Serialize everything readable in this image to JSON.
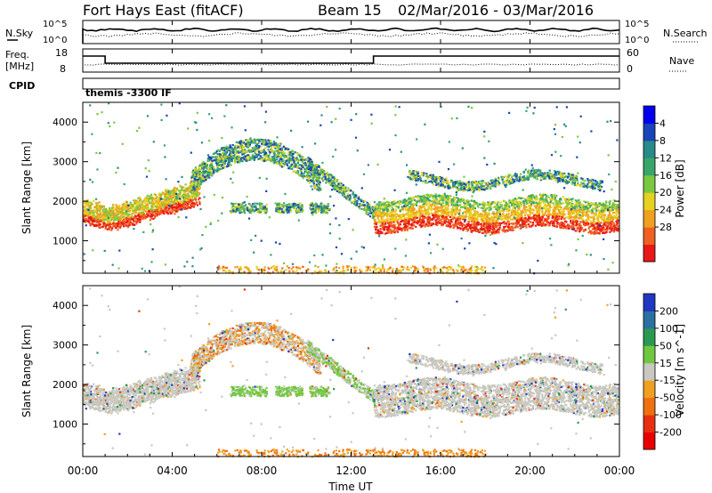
{
  "header": {
    "station": "Fort Hays East (fitACF)",
    "beam": "Beam 15",
    "dates": "02/Mar/2016 - 03/Mar/2016"
  },
  "strips": {
    "nsky_label": "N.Sky",
    "nsky_ticks": [
      "10^5",
      "10^0"
    ],
    "nsearch_label": "N.Search",
    "nsearch_ticks": [
      "10^5",
      "10^0"
    ],
    "freq_label_1": "Freq.",
    "freq_label_2": "[MHz]",
    "freq_ticks": [
      "18",
      "8"
    ],
    "nave_label": "Nave",
    "nave_ticks": [
      "60",
      "0"
    ],
    "cpid_label": "CPID",
    "cpid_value": "themis -3300 IF"
  },
  "chart_data": [
    {
      "type": "heatmap",
      "title": "",
      "xlabel": "Time UT",
      "ylabel": "Slant Range [km]",
      "x_ticks": [
        "00:00",
        "04:00",
        "08:00",
        "12:00",
        "16:00",
        "20:00",
        "00:00"
      ],
      "x_range_hours": [
        0,
        24
      ],
      "y_ticks": [
        1000,
        2000,
        3000,
        4000
      ],
      "ylim": [
        180,
        4500
      ],
      "colorbar": {
        "label": "Power [dB]",
        "ticks": [
          "4",
          "8",
          "12",
          "16",
          "20",
          "24",
          "28"
        ],
        "colors": [
          "#0000ee",
          "#1844b8",
          "#2a8a8a",
          "#3aa56a",
          "#7ac840",
          "#e6d020",
          "#f0a020",
          "#f06020",
          "#e81818"
        ]
      },
      "features": [
        {
          "start_h": 0.0,
          "end_h": 5.0,
          "range_km": [
            1300,
            2600
          ],
          "desc": "band rising"
        },
        {
          "start_h": 5.0,
          "end_h": 9.5,
          "range_km": [
            2600,
            3800
          ],
          "desc": "high arc"
        },
        {
          "start_h": 13.0,
          "end_h": 24.0,
          "range_km": [
            1200,
            2000
          ],
          "desc": "strong band"
        }
      ]
    },
    {
      "type": "heatmap",
      "title": "",
      "xlabel": "Time UT",
      "ylabel": "Slant Range [km]",
      "x_ticks": [
        "00:00",
        "04:00",
        "08:00",
        "12:00",
        "16:00",
        "20:00",
        "00:00"
      ],
      "x_range_hours": [
        0,
        24
      ],
      "y_ticks": [
        1000,
        2000,
        3000,
        4000
      ],
      "ylim": [
        180,
        4500
      ],
      "colorbar": {
        "label": "Velocity [m s^-1]",
        "ticks": [
          "200",
          "100",
          "50",
          "15",
          "-15",
          "-50",
          "-100",
          "-200"
        ],
        "colors": [
          "#2038c0",
          "#2a70a0",
          "#2a9a50",
          "#70c840",
          "#c8c8c0",
          "#f0a020",
          "#f07010",
          "#e83010",
          "#e80000"
        ]
      }
    }
  ]
}
